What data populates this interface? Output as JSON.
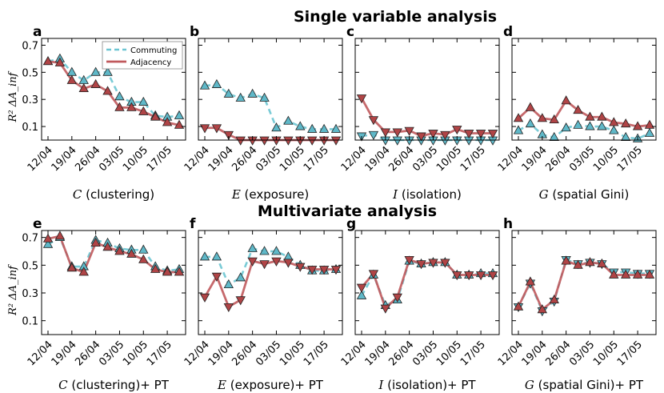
{
  "colors": {
    "commuting": "#6cc5d2",
    "commuting_marker": "#5fb8c8",
    "adjacency": "#c0595c",
    "adjacency_marker": "#b04446",
    "axis": "#000000"
  },
  "sections": {
    "single_title": "Single variable analysis",
    "multi_title": "Multivariate analysis"
  },
  "legend": {
    "commuting": "Commuting",
    "adjacency": "Adjacency"
  },
  "ylabel": "R² ΔA_inf",
  "chart_data": [
    {
      "type": "line",
      "panel": "a",
      "title": "",
      "xlabel_var": "C",
      "xlabel_text": "(clustering)",
      "categories": [
        "12/04",
        "19/04",
        "26/04",
        "03/05",
        "10/05",
        "17/05"
      ],
      "x": [
        0,
        1,
        2,
        3,
        4,
        5,
        6,
        7,
        8,
        9,
        10,
        11
      ],
      "ylim": [
        0,
        0.75
      ],
      "yticks": [
        0.1,
        0.3,
        0.5,
        0.7
      ],
      "ytick_labels": [
        "0.1",
        "0.3",
        "0.5",
        "0.7"
      ],
      "series": [
        {
          "name": "Commuting",
          "style": "dashed",
          "marker": "triangle-up",
          "values": [
            0.58,
            0.6,
            0.5,
            0.44,
            0.5,
            0.5,
            0.32,
            0.28,
            0.28,
            0.18,
            0.17,
            0.18
          ]
        },
        {
          "name": "Adjacency",
          "style": "solid",
          "marker": "triangle-up",
          "values": [
            0.58,
            0.57,
            0.44,
            0.38,
            0.41,
            0.36,
            0.24,
            0.24,
            0.21,
            0.17,
            0.13,
            0.11
          ]
        }
      ]
    },
    {
      "type": "line",
      "panel": "b",
      "title": "",
      "xlabel_var": "E",
      "xlabel_text": "(exposure)",
      "categories": [
        "12/04",
        "19/04",
        "26/04",
        "03/05",
        "10/05",
        "17/05"
      ],
      "x": [
        0,
        1,
        2,
        3,
        4,
        5,
        6,
        7,
        8,
        9,
        10,
        11
      ],
      "ylim": [
        0,
        0.75
      ],
      "yticks": [
        0.1,
        0.3,
        0.5,
        0.7
      ],
      "series": [
        {
          "name": "Commuting",
          "style": "dashed",
          "marker": "triangle-up",
          "values": [
            0.4,
            0.41,
            0.34,
            0.31,
            0.34,
            0.31,
            0.09,
            0.14,
            0.1,
            0.08,
            0.08,
            0.08
          ]
        },
        {
          "name": "Adjacency",
          "style": "solid",
          "marker": "triangle-down",
          "values": [
            0.09,
            0.09,
            0.04,
            0.0,
            0.0,
            0.0,
            0.0,
            0.0,
            0.0,
            0.0,
            0.0,
            0.0
          ]
        }
      ]
    },
    {
      "type": "line",
      "panel": "c",
      "title": "",
      "xlabel_var": "I",
      "xlabel_text": "(isolation)",
      "categories": [
        "12/04",
        "19/04",
        "26/04",
        "03/05",
        "10/05",
        "17/05"
      ],
      "x": [
        0,
        1,
        2,
        3,
        4,
        5,
        6,
        7,
        8,
        9,
        10,
        11
      ],
      "ylim": [
        0,
        0.75
      ],
      "yticks": [
        0.1,
        0.3,
        0.5,
        0.7
      ],
      "series": [
        {
          "name": "Commuting",
          "style": "dashed",
          "marker": "triangle-down",
          "values": [
            0.03,
            0.04,
            0.0,
            0.0,
            0.0,
            0.0,
            0.0,
            0.0,
            0.0,
            0.0,
            0.0,
            0.0
          ]
        },
        {
          "name": "Adjacency",
          "style": "solid",
          "marker": "triangle-down",
          "values": [
            0.31,
            0.15,
            0.06,
            0.06,
            0.07,
            0.03,
            0.05,
            0.04,
            0.08,
            0.05,
            0.05,
            0.05
          ]
        }
      ]
    },
    {
      "type": "line",
      "panel": "d",
      "title": "",
      "xlabel_var": "G",
      "xlabel_text": "(spatial Gini)",
      "categories": [
        "12/04",
        "19/04",
        "26/04",
        "03/05",
        "10/05",
        "17/05"
      ],
      "x": [
        0,
        1,
        2,
        3,
        4,
        5,
        6,
        7,
        8,
        9,
        10,
        11
      ],
      "ylim": [
        0,
        0.75
      ],
      "yticks": [
        0.1,
        0.3,
        0.5,
        0.7
      ],
      "series": [
        {
          "name": "Commuting",
          "style": "dashed",
          "marker": "triangle-up",
          "values": [
            0.07,
            0.12,
            0.04,
            0.02,
            0.09,
            0.11,
            0.1,
            0.1,
            0.07,
            0.02,
            0.01,
            0.05
          ]
        },
        {
          "name": "Adjacency",
          "style": "solid",
          "marker": "triangle-up",
          "values": [
            0.16,
            0.24,
            0.16,
            0.15,
            0.29,
            0.22,
            0.17,
            0.17,
            0.13,
            0.12,
            0.1,
            0.11
          ]
        }
      ]
    },
    {
      "type": "line",
      "panel": "e",
      "title": "",
      "xlabel_var": "C",
      "xlabel_text": "(clustering)+ PT",
      "categories": [
        "12/04",
        "19/04",
        "26/04",
        "03/05",
        "10/05",
        "17/05"
      ],
      "x": [
        0,
        1,
        2,
        3,
        4,
        5,
        6,
        7,
        8,
        9,
        10,
        11
      ],
      "ylim": [
        0,
        0.75
      ],
      "yticks": [
        0.1,
        0.3,
        0.5,
        0.7
      ],
      "series": [
        {
          "name": "Commuting",
          "style": "dashed",
          "marker": "triangle-up",
          "values": [
            0.65,
            0.7,
            0.49,
            0.49,
            0.68,
            0.66,
            0.62,
            0.61,
            0.61,
            0.49,
            0.46,
            0.47
          ]
        },
        {
          "name": "Adjacency",
          "style": "solid",
          "marker": "triangle-up",
          "values": [
            0.69,
            0.71,
            0.48,
            0.45,
            0.66,
            0.63,
            0.6,
            0.58,
            0.54,
            0.47,
            0.45,
            0.45
          ]
        }
      ]
    },
    {
      "type": "line",
      "panel": "f",
      "title": "",
      "xlabel_var": "E",
      "xlabel_text": "(exposure)+ PT",
      "categories": [
        "12/04",
        "19/04",
        "26/04",
        "03/05",
        "10/05",
        "17/05"
      ],
      "x": [
        0,
        1,
        2,
        3,
        4,
        5,
        6,
        7,
        8,
        9,
        10,
        11
      ],
      "ylim": [
        0,
        0.75
      ],
      "yticks": [
        0.1,
        0.3,
        0.5,
        0.7
      ],
      "series": [
        {
          "name": "Commuting",
          "style": "dashed",
          "marker": "triangle-up",
          "values": [
            0.56,
            0.56,
            0.36,
            0.41,
            0.62,
            0.6,
            0.6,
            0.56,
            0.5,
            0.46,
            0.46,
            0.47
          ]
        },
        {
          "name": "Adjacency",
          "style": "solid",
          "marker": "triangle-down",
          "values": [
            0.27,
            0.42,
            0.2,
            0.25,
            0.53,
            0.51,
            0.53,
            0.52,
            0.49,
            0.47,
            0.47,
            0.47
          ]
        }
      ]
    },
    {
      "type": "line",
      "panel": "g",
      "title": "",
      "xlabel_var": "I",
      "xlabel_text": "(isolation)+ PT",
      "categories": [
        "12/04",
        "19/04",
        "26/04",
        "03/05",
        "10/05",
        "17/05"
      ],
      "x": [
        0,
        1,
        2,
        3,
        4,
        5,
        6,
        7,
        8,
        9,
        10,
        11
      ],
      "ylim": [
        0,
        0.75
      ],
      "yticks": [
        0.1,
        0.3,
        0.5,
        0.7
      ],
      "series": [
        {
          "name": "Commuting",
          "style": "dashed",
          "marker": "triangle-up",
          "values": [
            0.28,
            0.43,
            0.21,
            0.25,
            0.53,
            0.51,
            0.52,
            0.52,
            0.43,
            0.43,
            0.44,
            0.44
          ]
        },
        {
          "name": "Adjacency",
          "style": "solid",
          "marker": "triangle-down",
          "values": [
            0.34,
            0.44,
            0.19,
            0.27,
            0.54,
            0.51,
            0.52,
            0.52,
            0.43,
            0.43,
            0.43,
            0.43
          ]
        }
      ]
    },
    {
      "type": "line",
      "panel": "h",
      "title": "",
      "xlabel_var": "G",
      "xlabel_text": "(spatial Gini)+ PT",
      "categories": [
        "12/04",
        "19/04",
        "26/04",
        "03/05",
        "10/05",
        "17/05"
      ],
      "x": [
        0,
        1,
        2,
        3,
        4,
        5,
        6,
        7,
        8,
        9,
        10,
        11
      ],
      "ylim": [
        0,
        0.75
      ],
      "yticks": [
        0.1,
        0.3,
        0.5,
        0.7
      ],
      "series": [
        {
          "name": "Commuting",
          "style": "dashed",
          "marker": "triangle-down",
          "values": [
            0.2,
            0.37,
            0.17,
            0.24,
            0.54,
            0.51,
            0.52,
            0.51,
            0.45,
            0.45,
            0.44,
            0.44
          ]
        },
        {
          "name": "Adjacency",
          "style": "solid",
          "marker": "triangle-up",
          "values": [
            0.2,
            0.38,
            0.18,
            0.25,
            0.53,
            0.5,
            0.52,
            0.51,
            0.43,
            0.43,
            0.43,
            0.43
          ]
        }
      ]
    }
  ]
}
